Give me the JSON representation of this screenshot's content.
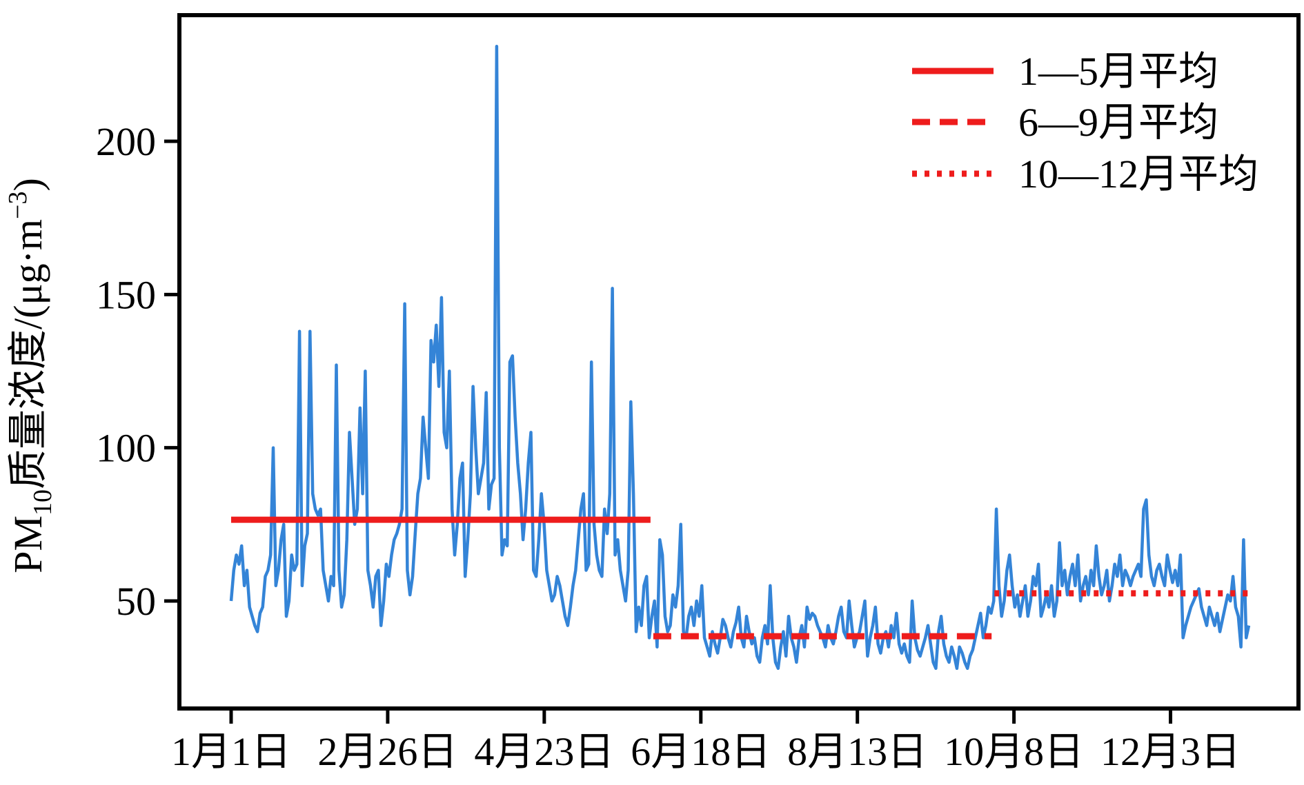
{
  "chart_data": {
    "type": "line",
    "title": "",
    "xlabel": "",
    "ylabel": {
      "prefix": "PM",
      "subscript": "10",
      "middle": "质量浓度/(μg·m",
      "superscript": "−3",
      "suffix": ")"
    },
    "ylim": [
      18,
      235
    ],
    "y_ticks": [
      50,
      100,
      150,
      200
    ],
    "x_range": [
      "1月1日",
      "12月31日"
    ],
    "x_ticks": [
      "1月1日",
      "2月26日",
      "4月23日",
      "6月18日",
      "8月13日",
      "10月8日",
      "12月3日"
    ],
    "grid": false,
    "legend_position": "top-right",
    "series": [
      {
        "name": "",
        "color": "#3484D7",
        "style": "solid",
        "values": [
          50,
          60,
          65,
          62,
          68,
          55,
          60,
          48,
          45,
          42,
          40,
          46,
          48,
          58,
          60,
          65,
          100,
          55,
          60,
          70,
          75,
          45,
          50,
          65,
          60,
          62,
          138,
          55,
          68,
          72,
          138,
          85,
          80,
          78,
          80,
          60,
          55,
          50,
          58,
          55,
          127,
          60,
          48,
          52,
          70,
          105,
          90,
          75,
          80,
          113,
          85,
          125,
          60,
          55,
          48,
          58,
          60,
          42,
          50,
          62,
          58,
          65,
          70,
          72,
          75,
          80,
          147,
          60,
          52,
          58,
          72,
          85,
          90,
          110,
          100,
          90,
          135,
          128,
          140,
          120,
          149,
          105,
          100,
          125,
          80,
          65,
          75,
          90,
          95,
          58,
          70,
          85,
          120,
          100,
          85,
          90,
          95,
          118,
          80,
          88,
          90,
          231,
          100,
          65,
          70,
          68,
          128,
          130,
          110,
          95,
          85,
          70,
          80,
          95,
          105,
          60,
          58,
          70,
          85,
          75,
          60,
          55,
          50,
          52,
          58,
          55,
          50,
          45,
          42,
          48,
          55,
          60,
          70,
          80,
          85,
          60,
          62,
          128,
          75,
          65,
          60,
          58,
          80,
          72,
          85,
          152,
          65,
          70,
          60,
          55,
          50,
          60,
          115,
          85,
          40,
          48,
          42,
          55,
          58,
          38,
          45,
          50,
          35,
          70,
          65,
          45,
          40,
          42,
          52,
          48,
          55,
          75,
          40,
          38,
          45,
          48,
          42,
          50,
          45,
          55,
          38,
          35,
          32,
          40,
          36,
          33,
          38,
          44,
          42,
          38,
          35,
          40,
          43,
          48,
          38,
          35,
          45,
          40,
          36,
          38,
          32,
          30,
          38,
          42,
          36,
          55,
          38,
          30,
          28,
          35,
          40,
          32,
          45,
          38,
          35,
          30,
          38,
          42,
          35,
          48,
          44,
          46,
          45,
          42,
          40,
          38,
          35,
          42,
          38,
          36,
          40,
          45,
          48,
          40,
          38,
          50,
          42,
          35,
          38,
          40,
          45,
          50,
          32,
          38,
          42,
          48,
          36,
          33,
          38,
          40,
          35,
          42,
          38,
          46,
          36,
          33,
          36,
          32,
          30,
          50,
          38,
          34,
          32,
          35,
          38,
          42,
          36,
          30,
          28,
          40,
          45,
          36,
          32,
          30,
          35,
          32,
          28,
          35,
          33,
          30,
          28,
          32,
          34,
          38,
          42,
          46,
          38,
          42,
          48,
          46,
          50,
          80,
          55,
          45,
          50,
          60,
          65,
          55,
          48,
          52,
          45,
          50,
          55,
          45,
          50,
          58,
          55,
          62,
          45,
          48,
          52,
          48,
          55,
          45,
          50,
          69,
          55,
          60,
          52,
          58,
          62,
          55,
          65,
          50,
          55,
          58,
          52,
          60,
          55,
          68,
          58,
          52,
          55,
          60,
          50,
          55,
          62,
          58,
          65,
          55,
          60,
          58,
          55,
          58,
          60,
          62,
          58,
          80,
          83,
          65,
          58,
          55,
          60,
          62,
          58,
          55,
          65,
          60,
          56,
          60,
          55,
          65,
          38,
          42,
          45,
          48,
          50,
          52,
          54,
          48,
          45,
          42,
          48,
          45,
          42,
          46,
          40,
          44,
          48,
          52,
          50,
          58,
          48,
          45,
          35,
          70,
          38,
          42
        ]
      },
      {
        "name": "1—5月平均",
        "color": "#EE1C1C",
        "style": "solid",
        "segment": {
          "x_start": "1月1日",
          "x_end": "5月31日",
          "value": 76.5
        }
      },
      {
        "name": "6—9月平均",
        "color": "#EE1C1C",
        "style": "dashed",
        "segment": {
          "x_start": "6月1日",
          "x_end": "9月30日",
          "value": 38.5
        }
      },
      {
        "name": "10—12月平均",
        "color": "#EE1C1C",
        "style": "dotted",
        "segment": {
          "x_start": "10月1日",
          "x_end": "12月31日",
          "value": 52.5
        }
      }
    ]
  }
}
